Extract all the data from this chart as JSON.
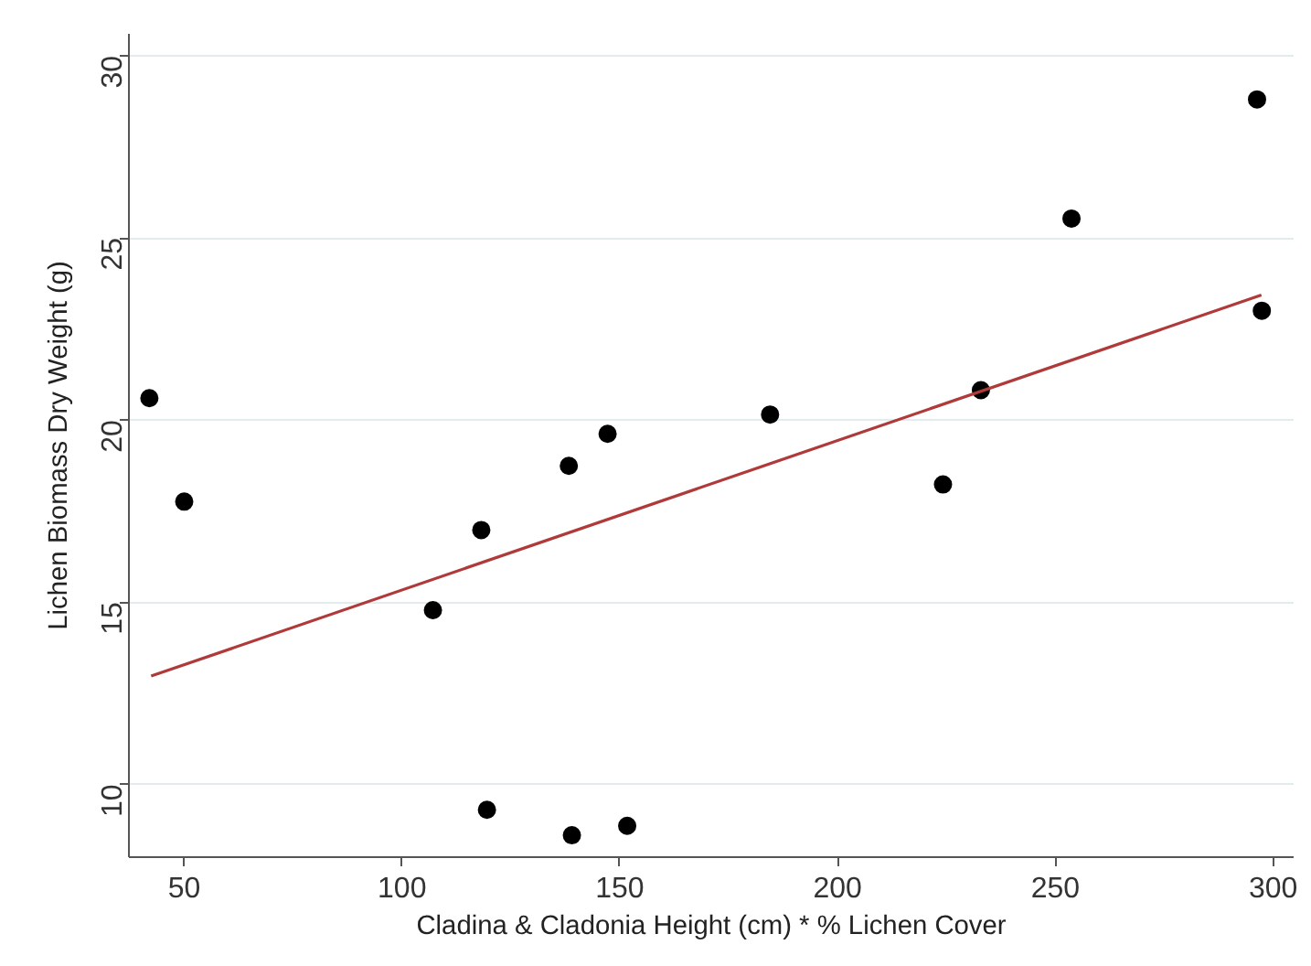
{
  "chart_data": {
    "type": "scatter",
    "xlabel": "Cladina & Cladonia Height (cm) * % Lichen Cover",
    "ylabel": "Lichen Biomass Dry Weight (g)",
    "xlim": [
      37.3,
      304.7
    ],
    "ylim": [
      8.0,
      30.6
    ],
    "xticks": [
      50,
      100,
      150,
      200,
      250,
      300
    ],
    "yticks": [
      10,
      15,
      20,
      25,
      30
    ],
    "grid": "y",
    "series": [
      {
        "marker": "circle",
        "color": "#000000",
        "x": [
          42,
          50,
          107.1,
          118.2,
          119.5,
          138.3,
          139,
          147.2,
          151.7,
          184.5,
          224.2,
          232.9,
          253.7,
          296.3,
          297.4
        ],
        "values": [
          20.6,
          17.76,
          14.78,
          16.98,
          9.3,
          18.74,
          8.6,
          19.62,
          8.86,
          20.15,
          18.23,
          20.82,
          25.53,
          28.8,
          23.0
        ]
      },
      {
        "type": "line",
        "marker": "none",
        "color": "#b03a3a",
        "line_style": "solid",
        "x": [
          42.4,
          297.3
        ],
        "values": [
          12.97,
          23.43
        ]
      }
    ]
  }
}
